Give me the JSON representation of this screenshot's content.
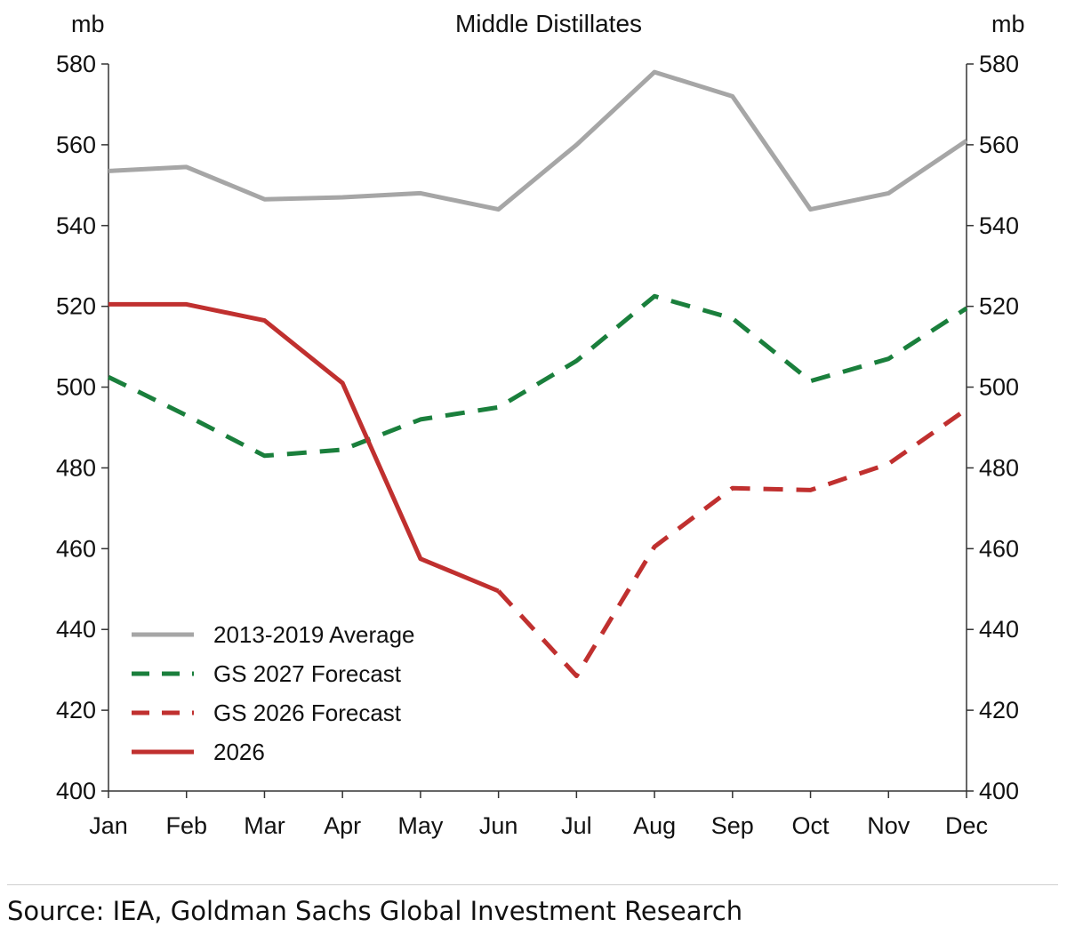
{
  "chart_data": {
    "type": "line",
    "title": "Middle Distillates",
    "ylabel_left": "mb",
    "ylabel_right": "mb",
    "categories": [
      "Jan",
      "Feb",
      "Mar",
      "Apr",
      "May",
      "Jun",
      "Jul",
      "Aug",
      "Sep",
      "Oct",
      "Nov",
      "Dec"
    ],
    "ylim": [
      400,
      580
    ],
    "yticks": [
      400,
      420,
      440,
      460,
      480,
      500,
      520,
      540,
      560,
      580
    ],
    "yticks_label": [
      "400",
      "420",
      "440",
      "460",
      "480",
      "500",
      "520",
      "540",
      "560",
      "580"
    ],
    "grid": false,
    "legend_position": "bottom-left",
    "series": [
      {
        "name": "2013-2019 Average",
        "color": "#a6a6a6",
        "style": "solid",
        "values": [
          553.5,
          554.5,
          546.5,
          547,
          548,
          544,
          560,
          578,
          572,
          544,
          548,
          561
        ]
      },
      {
        "name": "GS 2027 Forecast",
        "color": "#1a7f3c",
        "style": "dashed",
        "values": [
          502.5,
          493,
          483,
          484.5,
          492,
          495,
          506.5,
          522.5,
          517,
          501.5,
          507,
          519.5
        ]
      },
      {
        "name": "GS 2026 Forecast",
        "color": "#c0302f",
        "style": "dashed",
        "values": [
          null,
          null,
          null,
          null,
          null,
          449.5,
          428.5,
          460.5,
          475,
          474.5,
          481,
          494.5
        ]
      },
      {
        "name": "2026",
        "color": "#c0302f",
        "style": "solid",
        "values": [
          520.5,
          520.5,
          516.5,
          501,
          457.5,
          449.5,
          null,
          null,
          null,
          null,
          null,
          null
        ]
      }
    ]
  },
  "source": "Source: IEA, Goldman Sachs Global Investment Research"
}
